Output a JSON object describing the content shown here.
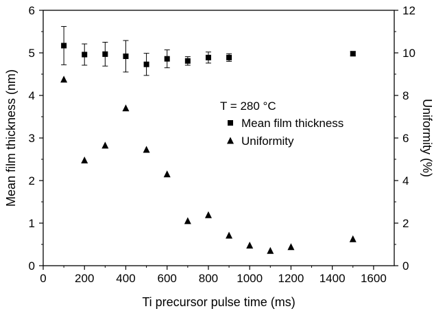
{
  "chart_data": {
    "type": "scatter",
    "title": "",
    "xlabel": "Ti precursor pulse time (ms)",
    "ylabel": "Mean film thickness (nm)",
    "y2label": "Uniformity (%)",
    "xlim": [
      0,
      1700
    ],
    "ylim": [
      0,
      6
    ],
    "y2lim": [
      0,
      12
    ],
    "xticks": [
      0,
      200,
      400,
      600,
      800,
      1000,
      1200,
      1400,
      1600
    ],
    "yticks": [
      0,
      1,
      2,
      3,
      4,
      5,
      6
    ],
    "y2ticks": [
      0,
      2,
      4,
      6,
      8,
      10,
      12
    ],
    "grid": false,
    "legend_position": "center-right",
    "annotation": "T = 280 °C",
    "series": [
      {
        "name": "Mean film thickness",
        "axis": "left",
        "marker": "square",
        "x": [
          100,
          200,
          300,
          400,
          500,
          600,
          700,
          800,
          900,
          1500
        ],
        "y": [
          5.17,
          4.96,
          4.97,
          4.92,
          4.73,
          4.86,
          4.81,
          4.89,
          4.89,
          4.98
        ],
        "err": [
          0.45,
          0.25,
          0.28,
          0.37,
          0.26,
          0.21,
          0.1,
          0.13,
          0.09,
          0.05
        ]
      },
      {
        "name": "Uniformity",
        "axis": "right",
        "marker": "triangle",
        "x": [
          100,
          200,
          300,
          400,
          500,
          600,
          700,
          800,
          900,
          1000,
          1100,
          1200,
          1500
        ],
        "y": [
          8.75,
          4.95,
          5.65,
          7.4,
          5.45,
          4.3,
          2.1,
          2.38,
          1.42,
          0.95,
          0.7,
          0.88,
          1.25
        ]
      }
    ]
  }
}
